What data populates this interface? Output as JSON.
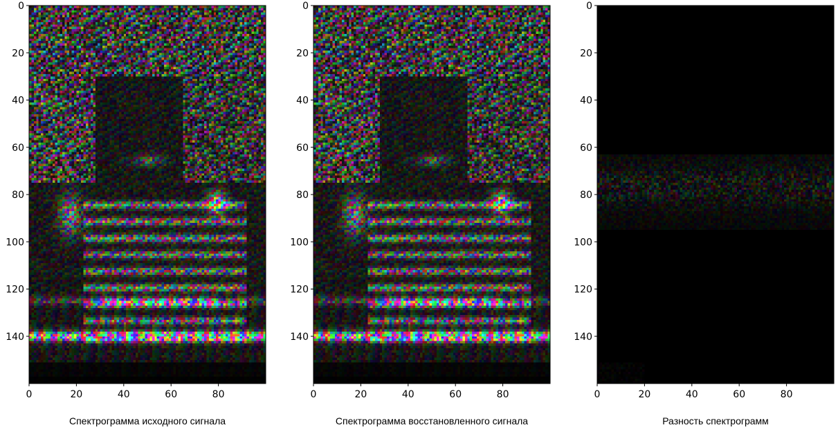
{
  "chart_data": [
    {
      "type": "heatmap",
      "title": "",
      "caption": "Спектрограмма исходного сигнала",
      "xlabel": "",
      "ylabel": "",
      "xlim": [
        0,
        100
      ],
      "ylim": [
        160,
        0
      ],
      "xticks": [
        0,
        20,
        40,
        60,
        80
      ],
      "yticks": [
        0,
        20,
        40,
        60,
        80,
        100,
        120,
        140
      ],
      "variant": "original",
      "colormap": "phase-hue (rgb), brightness = magnitude"
    },
    {
      "type": "heatmap",
      "title": "",
      "caption": "Спектрограмма восстановленного сигнала",
      "xlabel": "",
      "ylabel": "",
      "xlim": [
        0,
        100
      ],
      "ylim": [
        160,
        0
      ],
      "xticks": [
        0,
        20,
        40,
        60,
        80
      ],
      "yticks": [
        0,
        20,
        40,
        60,
        80,
        100,
        120,
        140
      ],
      "variant": "reconstructed",
      "colormap": "phase-hue (rgb), brightness = magnitude"
    },
    {
      "type": "heatmap",
      "title": "",
      "caption": "Разность спектрограмм",
      "xlabel": "",
      "ylabel": "",
      "xlim": [
        0,
        100
      ],
      "ylim": [
        160,
        0
      ],
      "xticks": [
        0,
        20,
        40,
        60,
        80
      ],
      "yticks": [
        0,
        20,
        40,
        60,
        80,
        100,
        120,
        140
      ],
      "variant": "difference",
      "colormap": "phase-hue (rgb), brightness = magnitude"
    }
  ]
}
